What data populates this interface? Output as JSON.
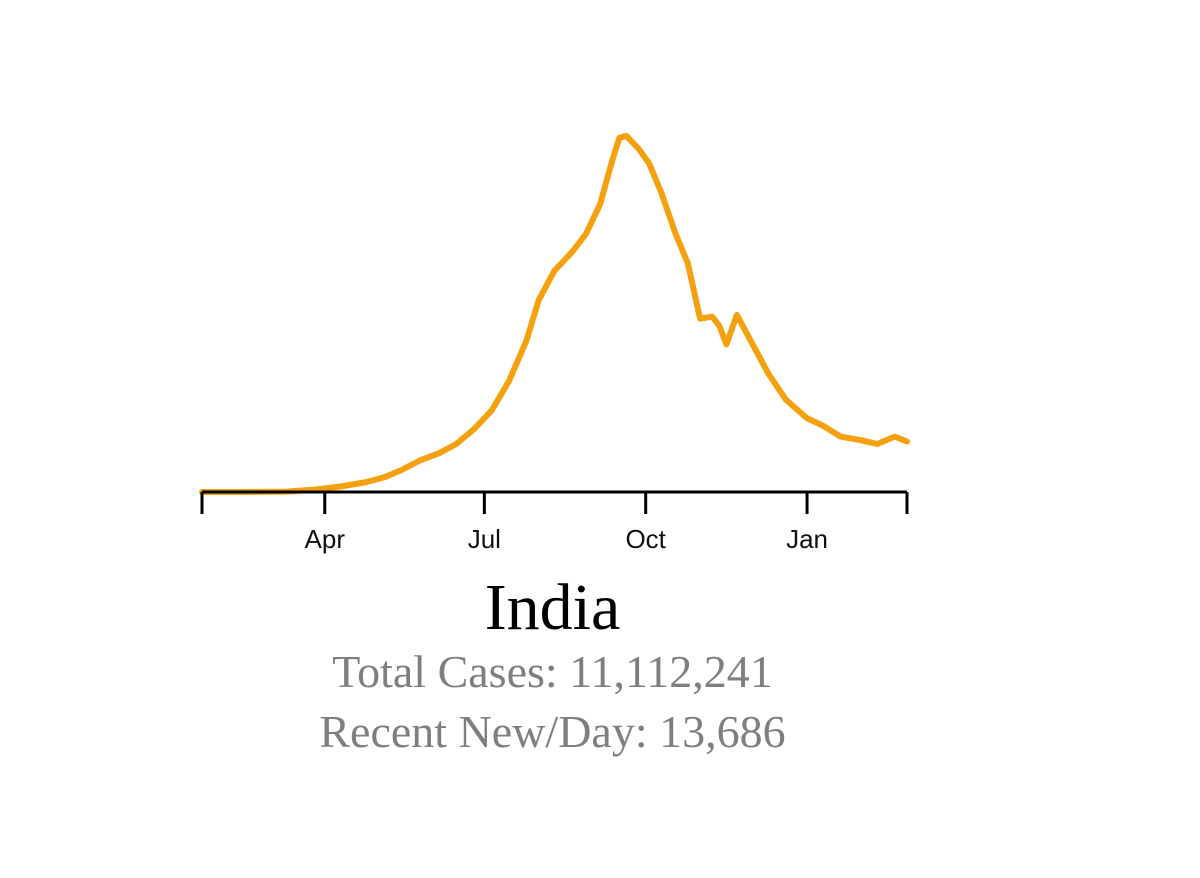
{
  "chart_data": {
    "type": "line",
    "title": "India",
    "xlabel": "",
    "ylabel": "",
    "x_range": [
      "2020-01-22",
      "2021-02-27"
    ],
    "x_ticks": [
      {
        "date": "2020-04-01",
        "label": "Apr"
      },
      {
        "date": "2020-07-01",
        "label": "Jul"
      },
      {
        "date": "2020-10-01",
        "label": "Oct"
      },
      {
        "date": "2021-01-01",
        "label": "Jan"
      }
    ],
    "ylim": [
      0,
      100000
    ],
    "grid": false,
    "line_color": "#F5A10F",
    "series": [
      {
        "x": [
          "2020-01-22",
          "2020-02-15",
          "2020-03-10",
          "2020-03-25",
          "2020-04-10",
          "2020-04-25",
          "2020-05-05",
          "2020-05-15",
          "2020-05-25",
          "2020-06-05",
          "2020-06-15",
          "2020-06-25",
          "2020-07-05",
          "2020-07-15",
          "2020-07-25",
          "2020-08-01",
          "2020-08-10",
          "2020-08-20",
          "2020-08-28",
          "2020-09-05",
          "2020-09-12",
          "2020-09-16",
          "2020-09-20",
          "2020-09-27",
          "2020-10-03",
          "2020-10-10",
          "2020-10-18",
          "2020-10-25",
          "2020-11-01",
          "2020-11-08",
          "2020-11-12",
          "2020-11-16",
          "2020-11-22",
          "2020-12-01",
          "2020-12-10",
          "2020-12-20",
          "2021-01-01",
          "2021-01-10",
          "2021-01-20",
          "2021-02-01",
          "2021-02-10",
          "2021-02-20",
          "2021-02-27"
        ],
        "values": [
          0,
          0,
          100,
          600,
          1500,
          2700,
          4000,
          6000,
          8500,
          10500,
          13000,
          17000,
          22000,
          30000,
          41000,
          52000,
          60000,
          65000,
          70000,
          78000,
          90000,
          96000,
          96500,
          93000,
          89000,
          81000,
          70000,
          62000,
          47000,
          47500,
          45000,
          40000,
          48000,
          40000,
          32000,
          25000,
          20000,
          18000,
          15000,
          14000,
          13000,
          15000,
          13686
        ]
      }
    ]
  },
  "country": "India",
  "stats": {
    "total_cases": "Total Cases: 11,112,241",
    "recent_new_per_day": "Recent New/Day: 13,686"
  }
}
